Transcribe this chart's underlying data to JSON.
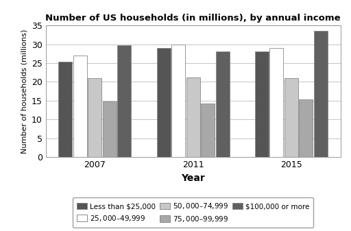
{
  "title": "Number of US households (in millions), by annual income",
  "xlabel": "Year",
  "ylabel": "Number of households (millions)",
  "years": [
    "2007",
    "2011",
    "2015"
  ],
  "categories": [
    "Less than $25,000",
    "$25,000–$49,999",
    "$50,000–$74,999",
    "$75,000–$99,999",
    "$100,000 or more"
  ],
  "values": {
    "Less than $25,000": [
      25.3,
      29.0,
      28.1
    ],
    "$25,000–$49,999": [
      27.0,
      30.0,
      29.0
    ],
    "$50,000–$74,999": [
      21.0,
      21.2,
      21.0
    ],
    "$75,000–$99,999": [
      14.7,
      14.2,
      15.3
    ],
    "$100,000 or more": [
      29.7,
      28.0,
      33.5
    ]
  },
  "colors": [
    "#555555",
    "#ffffff",
    "#c8c8c8",
    "#a8a8a8",
    "#606060"
  ],
  "ylim": [
    0,
    35
  ],
  "yticks": [
    0,
    5,
    10,
    15,
    20,
    25,
    30,
    35
  ],
  "legend_labels": [
    "Less than $25,000",
    "$25,000–$49,999",
    "$50,000–$74,999",
    "$75,000–$99,999",
    "$100,000 or more"
  ],
  "legend_ncol": 3,
  "bar_edge_color": "#888888"
}
